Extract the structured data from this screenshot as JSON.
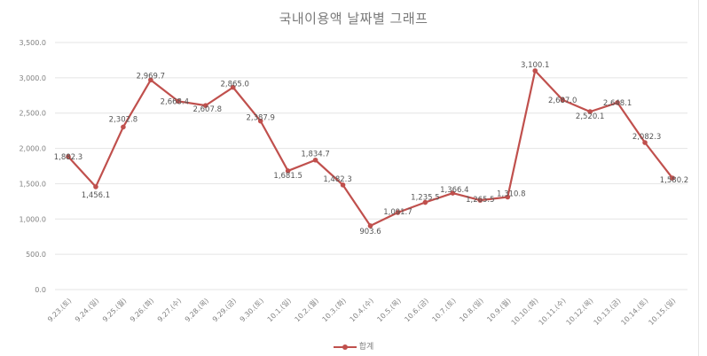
{
  "chart_data": {
    "type": "line",
    "title": "국내이용액 날짜별 그래프",
    "xlabel": "",
    "ylabel": "",
    "ylim": [
      0,
      3500
    ],
    "yticks": [
      "0.0",
      "500.0",
      "1,000.0",
      "1,500.0",
      "2,000.0",
      "2,500.0",
      "3,000.0",
      "3,500.0"
    ],
    "grid": true,
    "legend_position": "bottom",
    "categories": [
      "9.23.(토)",
      "9.24.(일)",
      "9.25.(월)",
      "9.26.(화)",
      "9.27.(수)",
      "9.28.(목)",
      "9.29.(금)",
      "9.30.(토)",
      "10.1.(일)",
      "10.2.(월)",
      "10.3.(화)",
      "10.4.(수)",
      "10.5.(목)",
      "10.6.(금)",
      "10.7.(토)",
      "10.8.(일)",
      "10.9.(월)",
      "10.10.(화)",
      "10.11.(수)",
      "10.12.(목)",
      "10.13.(금)",
      "10.14.(토)",
      "10.15.(일)"
    ],
    "series": [
      {
        "name": "합계",
        "color": "#c0504d",
        "values": [
          1882.3,
          1456.1,
          2302.8,
          2969.7,
          2668.4,
          2607.8,
          2865.0,
          2387.9,
          1681.5,
          1834.7,
          1482.3,
          903.6,
          1091.7,
          1235.5,
          1366.4,
          1265.5,
          1310.8,
          3100.1,
          2687.0,
          2520.1,
          2648.1,
          2082.3,
          1580.2
        ],
        "labels": [
          "1,882.3",
          "1,456.1",
          "2,302.8",
          "2,969.7",
          "2,668.4",
          "2,607.8",
          "2,865.0",
          "2,387.9",
          "1,681.5",
          "1,834.7",
          "1,482.3",
          "903.6",
          "1,091.7",
          "1,235.5",
          "1,366.4",
          "1,265.5",
          "1,310.8",
          "3,100.1",
          "2,687.0",
          "2,520.1",
          "2,648.1",
          "2,082.3",
          "1,580.2"
        ]
      }
    ]
  },
  "legend": {
    "label": "합계"
  }
}
